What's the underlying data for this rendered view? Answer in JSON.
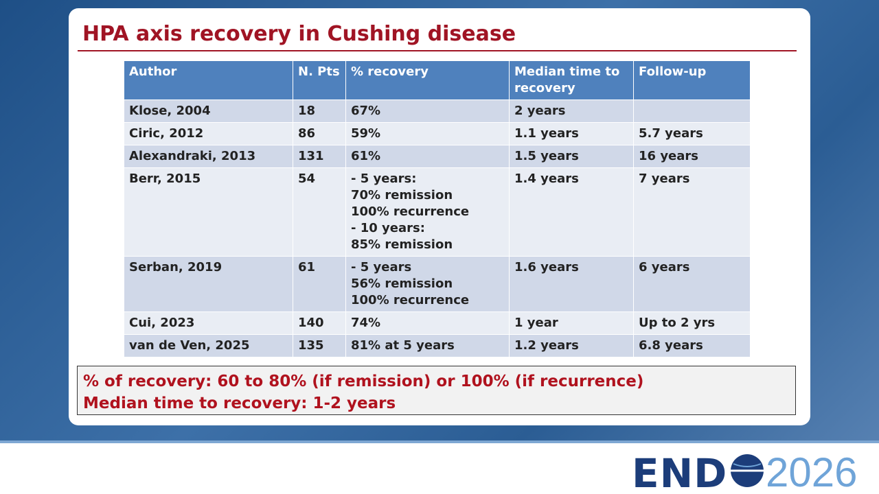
{
  "title": "HPA axis recovery in Cushing disease",
  "table": {
    "header": [
      "Author",
      "N. Pts",
      "% recovery",
      "Median time to recovery",
      "Follow-up"
    ],
    "rows": [
      [
        "Klose, 2004",
        "18",
        "67%",
        "2 years",
        null
      ],
      [
        "Ciric, 2012",
        "86",
        "59%",
        "1.1 years",
        "5.7 years"
      ],
      [
        "Alexandraki, 2013",
        "131",
        "61%",
        "1.5 years",
        "16 years"
      ],
      [
        "Berr, 2015",
        "54",
        [
          "- 5 years:",
          "70% remission",
          "100% recurrence",
          "- 10 years:",
          "85% remission"
        ],
        "1.4 years",
        "7 years"
      ],
      [
        "Serban, 2019",
        "61",
        [
          "- 5 years",
          "56% remission",
          "100% recurrence"
        ],
        "1.6 years",
        "6 years"
      ],
      [
        "Cui, 2023",
        "140",
        "74%",
        "1 year",
        "Up to 2 yrs"
      ],
      [
        "van de Ven, 2025",
        "135",
        "81% at 5 years",
        "1.2 years",
        "6.8 years"
      ]
    ]
  },
  "summary": [
    "% of recovery: 60 to 80% (if remission) or 100% (if recurrence)",
    "Median time to recovery: 1-2 years"
  ],
  "logo": {
    "name": "END",
    "year": "2026"
  }
}
